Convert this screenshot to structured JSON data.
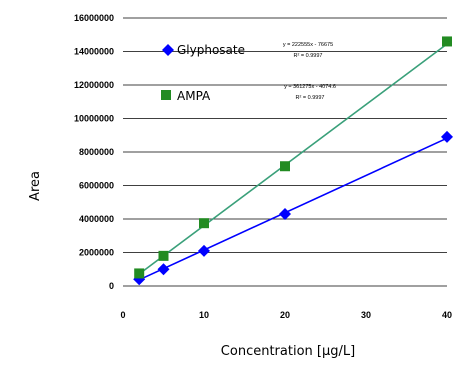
{
  "chart_data": {
    "type": "scatter",
    "xlabel": "Concentration [µg/L]",
    "ylabel": "Area",
    "xlim": [
      0,
      40
    ],
    "ylim": [
      0,
      16000000
    ],
    "x_ticks": [
      "0",
      "10",
      "20",
      "30",
      "40"
    ],
    "y_ticks": [
      "0",
      "2000000",
      "4000000",
      "6000000",
      "8000000",
      "10000000",
      "12000000",
      "14000000",
      "16000000"
    ],
    "grid": "horizontal",
    "legend_position": "top-left",
    "series": [
      {
        "name": "Glyphosate",
        "marker": "diamond",
        "color": "#0000ff",
        "x": [
          2,
          5,
          10,
          20,
          40
        ],
        "y": [
          400000,
          1000000,
          2100000,
          4300000,
          8900000
        ],
        "trendline": {
          "slope": 222555,
          "intercept": -76675,
          "equation": "y = 222555x - 76675",
          "r2": "R² = 0.9997"
        }
      },
      {
        "name": "AMPA",
        "marker": "square",
        "color": "#228b22",
        "x": [
          2,
          5,
          10,
          20,
          40
        ],
        "y": [
          750000,
          1800000,
          3750000,
          7150000,
          14600000
        ],
        "trendline": {
          "slope": 361275,
          "intercept": -4074.6,
          "equation": "y = 361275x - 4074.6",
          "r2": "R² = 0.9997"
        }
      }
    ],
    "trendline_color": "#3aa07a"
  }
}
